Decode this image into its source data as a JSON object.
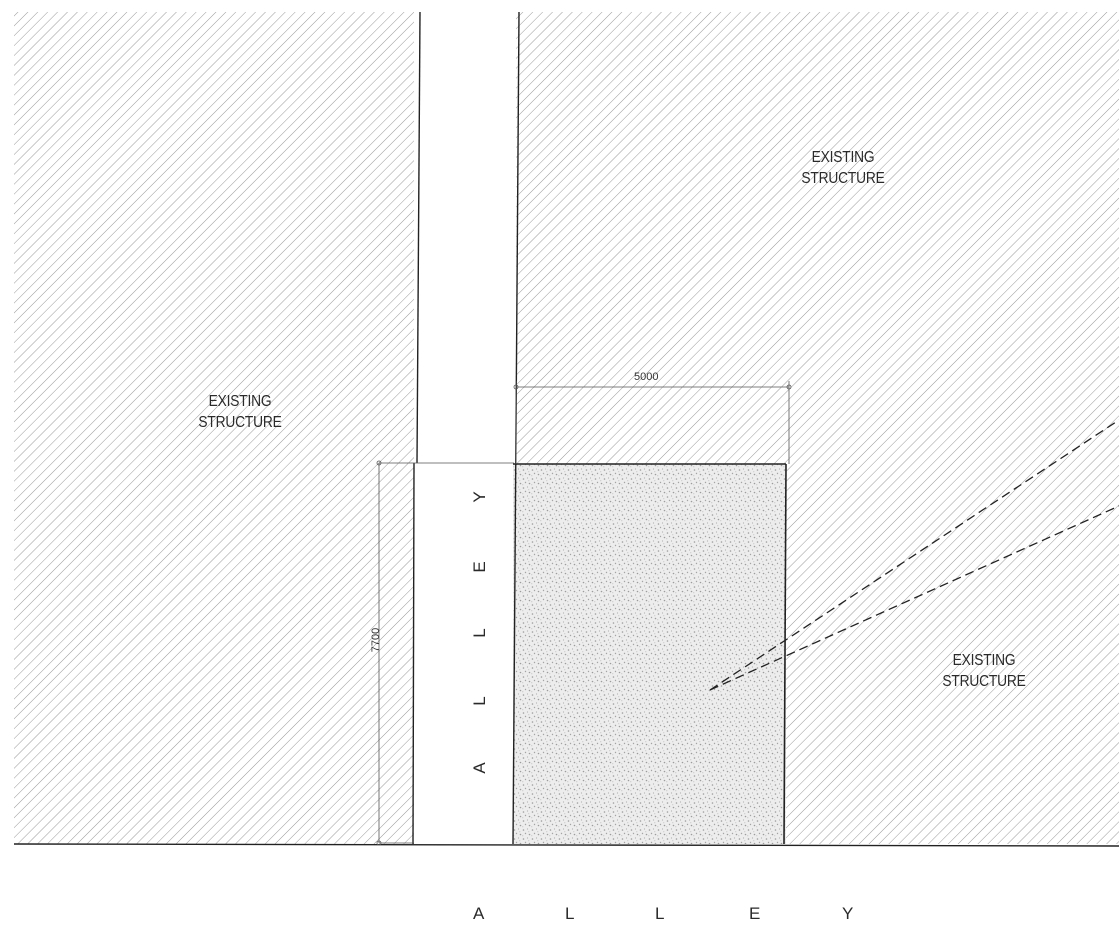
{
  "labels": {
    "existing_structure_left": [
      "EXISTING",
      "STRUCTURE"
    ],
    "existing_structure_top_right": [
      "EXISTING",
      "STRUCTURE"
    ],
    "existing_structure_bottom_right": [
      "EXISTING",
      "STRUCTURE"
    ]
  },
  "dimensions": {
    "width_label": "5000",
    "height_label": "7700"
  },
  "alley": {
    "vertical_letters": [
      "A",
      "L",
      "L",
      "E",
      "Y"
    ],
    "horizontal_letters": [
      "A",
      "L",
      "L",
      "E",
      "Y"
    ]
  },
  "colors": {
    "hatch": "#9a9a9a",
    "line": "#222222",
    "background": "#ffffff"
  }
}
